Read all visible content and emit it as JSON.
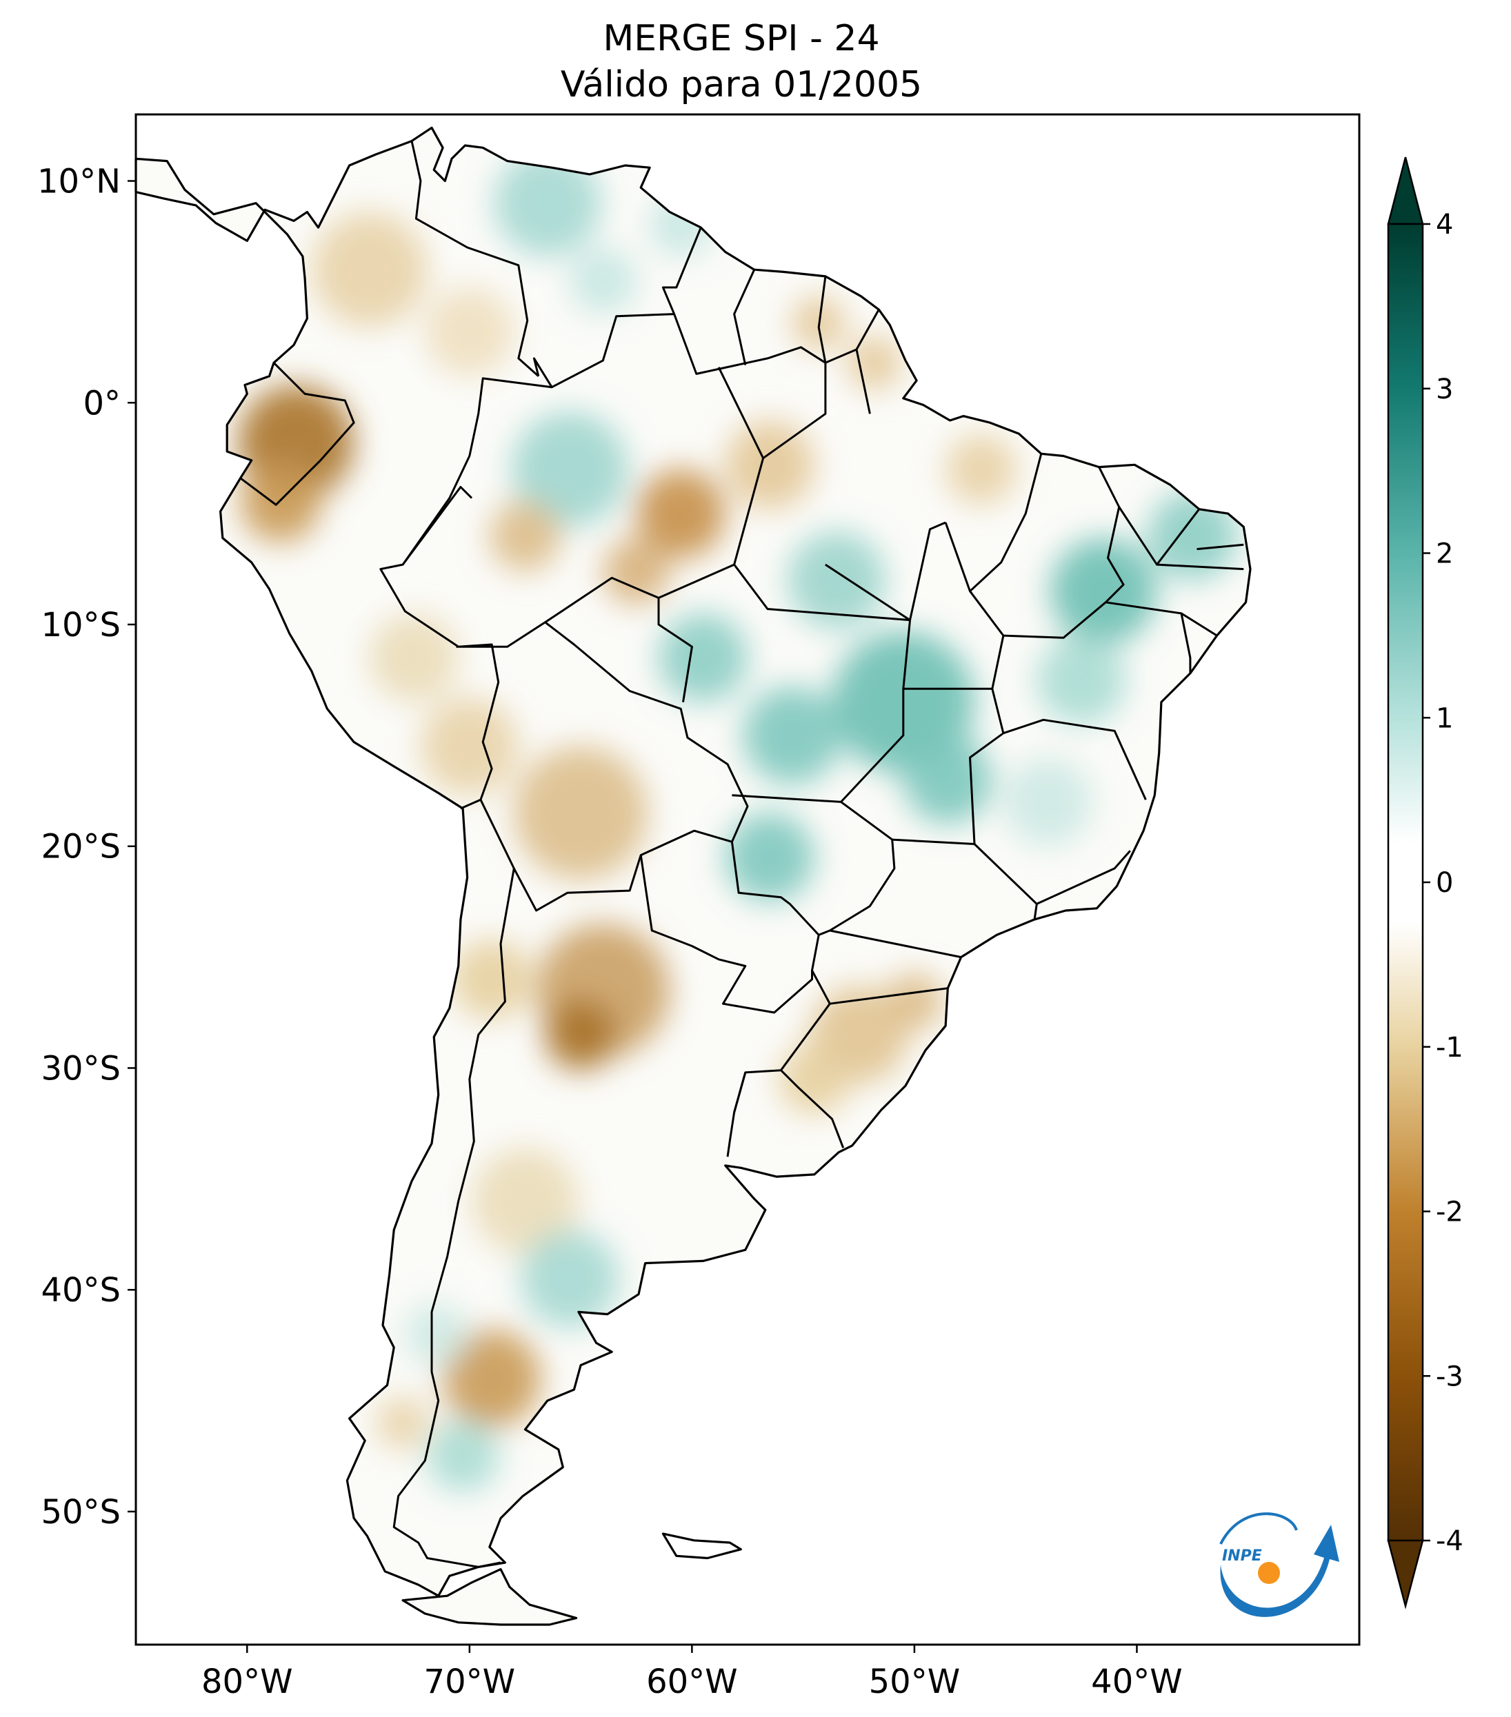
{
  "title": {
    "line1": "MERGE   SPI - 24",
    "line2": "Válido para 01/2005"
  },
  "axes": {
    "lat_ticks": [
      {
        "value": 10,
        "label": "10°N"
      },
      {
        "value": 0,
        "label": "0°"
      },
      {
        "value": -10,
        "label": "10°S"
      },
      {
        "value": -20,
        "label": "20°S"
      },
      {
        "value": -30,
        "label": "30°S"
      },
      {
        "value": -40,
        "label": "40°S"
      },
      {
        "value": -50,
        "label": "50°S"
      }
    ],
    "lon_ticks": [
      {
        "value": -80,
        "label": "80°W"
      },
      {
        "value": -70,
        "label": "70°W"
      },
      {
        "value": -60,
        "label": "60°W"
      },
      {
        "value": -50,
        "label": "50°W"
      },
      {
        "value": -40,
        "label": "40°W"
      }
    ],
    "lon_range": [
      -85,
      -30
    ],
    "lat_range": [
      -56,
      13
    ]
  },
  "colorbar": {
    "ticks": [
      "4",
      "3",
      "2",
      "1",
      "0",
      "-1",
      "-2",
      "-3",
      "-4"
    ],
    "range": [
      -4,
      4
    ],
    "extend": "both",
    "colors": [
      "#543005",
      "#8c510a",
      "#bf812d",
      "#dfc27d",
      "#f6e8c3",
      "#ffffff",
      "#c7eae5",
      "#80cdc1",
      "#35978f",
      "#01665e",
      "#003c30"
    ]
  },
  "logo": {
    "text": "INPE",
    "colors": {
      "blue": "#1b75bc",
      "orange": "#f7941d"
    }
  }
}
